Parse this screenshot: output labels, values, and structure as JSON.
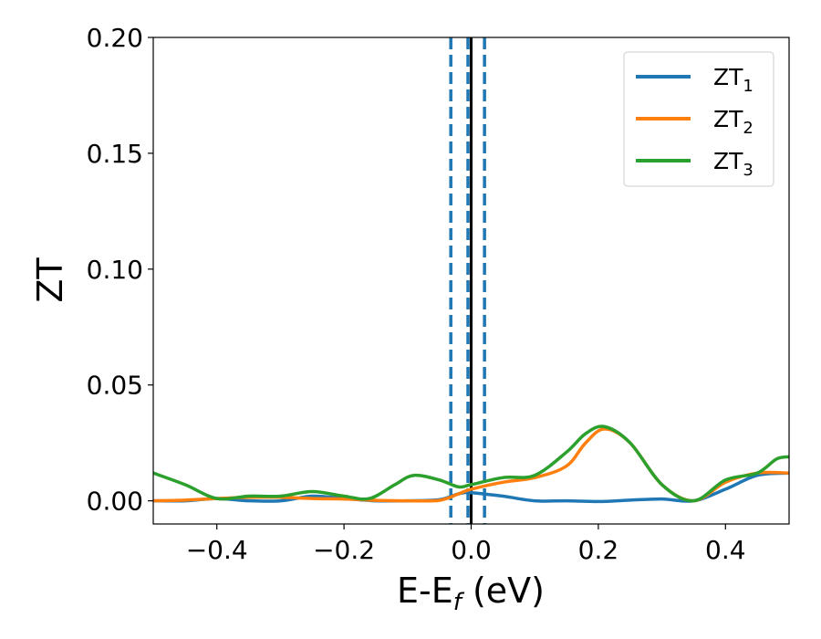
{
  "chart_data": {
    "type": "line",
    "xlabel": "E-E",
    "xlabel_sub": "f",
    "xlabel_unit": " (eV)",
    "ylabel": "ZT",
    "xlim": [
      -0.5,
      0.5
    ],
    "ylim": [
      -0.01,
      0.2
    ],
    "xticks": [
      -0.4,
      -0.2,
      0.0,
      0.2,
      0.4
    ],
    "xtick_labels": [
      "−0.4",
      "−0.2",
      "0.0",
      "0.2",
      "0.4"
    ],
    "yticks": [
      0.0,
      0.05,
      0.1,
      0.15,
      0.2
    ],
    "ytick_labels": [
      "0.00",
      "0.05",
      "0.10",
      "0.15",
      "0.20"
    ],
    "grid": false,
    "legend_position": "top-right",
    "vertical_lines": [
      {
        "x": -0.032,
        "style": "dashed",
        "color": "#1f77b4"
      },
      {
        "x": -0.005,
        "style": "dashed",
        "color": "#1f77b4"
      },
      {
        "x": 0.0,
        "style": "solid",
        "color": "#000000"
      },
      {
        "x": 0.021,
        "style": "dashed",
        "color": "#1f77b4"
      }
    ],
    "series": [
      {
        "name": "ZT",
        "name_sub": "1",
        "color": "#1f77b4",
        "x": [
          -0.5,
          -0.45,
          -0.4,
          -0.35,
          -0.3,
          -0.25,
          -0.2,
          -0.15,
          -0.1,
          -0.05,
          -0.02,
          0.0,
          0.05,
          0.1,
          0.15,
          0.2,
          0.25,
          0.3,
          0.35,
          0.4,
          0.45,
          0.5
        ],
        "y": [
          0.0,
          0.0,
          0.001,
          0.0,
          0.0,
          0.002,
          0.001,
          0.0,
          0.0,
          0.0005,
          0.003,
          0.0035,
          0.002,
          0.0,
          0.0,
          -0.0003,
          0.0003,
          0.0008,
          0.0,
          0.005,
          0.011,
          0.012
        ]
      },
      {
        "name": "ZT",
        "name_sub": "2",
        "color": "#ff7f0e",
        "x": [
          -0.5,
          -0.45,
          -0.4,
          -0.35,
          -0.3,
          -0.25,
          -0.2,
          -0.15,
          -0.1,
          -0.05,
          -0.02,
          0.0,
          0.05,
          0.1,
          0.15,
          0.18,
          0.21,
          0.25,
          0.3,
          0.35,
          0.4,
          0.45,
          0.5
        ],
        "y": [
          0.0,
          0.0003,
          0.001,
          0.0015,
          0.0015,
          0.001,
          0.0008,
          0.0002,
          0.0,
          0.0002,
          0.003,
          0.005,
          0.008,
          0.01,
          0.015,
          0.025,
          0.031,
          0.025,
          0.007,
          0.0,
          0.008,
          0.012,
          0.012
        ]
      },
      {
        "name": "ZT",
        "name_sub": "3",
        "color": "#2ca02c",
        "x": [
          -0.5,
          -0.45,
          -0.4,
          -0.35,
          -0.3,
          -0.25,
          -0.2,
          -0.16,
          -0.12,
          -0.09,
          -0.05,
          -0.02,
          0.0,
          0.05,
          0.1,
          0.15,
          0.18,
          0.21,
          0.25,
          0.3,
          0.35,
          0.4,
          0.45,
          0.48,
          0.5
        ],
        "y": [
          0.012,
          0.007,
          0.001,
          0.002,
          0.002,
          0.004,
          0.002,
          0.001,
          0.007,
          0.011,
          0.009,
          0.006,
          0.007,
          0.01,
          0.011,
          0.021,
          0.029,
          0.032,
          0.025,
          0.007,
          0.0,
          0.009,
          0.012,
          0.018,
          0.019
        ]
      }
    ]
  }
}
